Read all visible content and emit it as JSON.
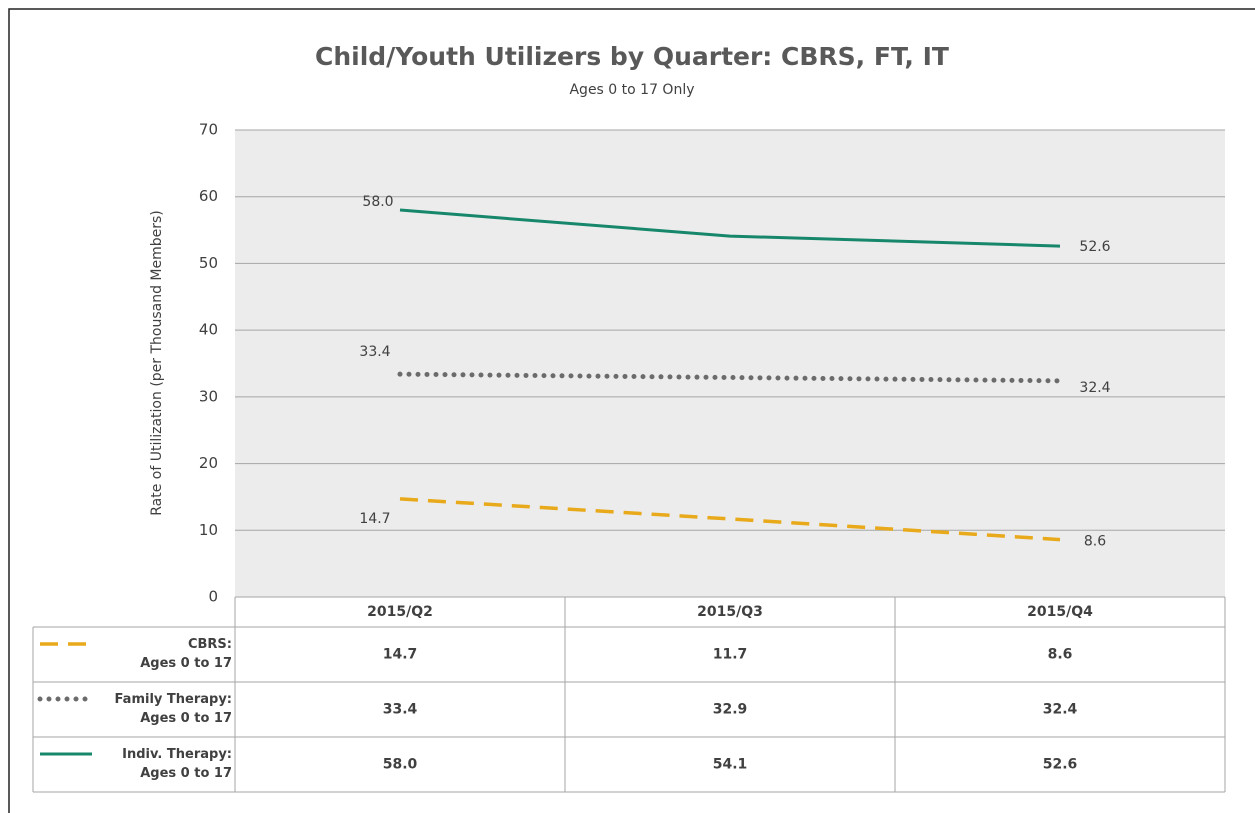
{
  "chart_data": {
    "type": "line",
    "title": "Child/Youth Utilizers by Quarter: CBRS, FT, IT",
    "subtitle": "Ages 0 to 17 Only",
    "y_label": "Rate of Utilization (per Thousand Members)",
    "categories": [
      "2015/Q2",
      "2015/Q3",
      "2015/Q4"
    ],
    "series": [
      {
        "name": "CBRS:\nAges 0 to 17",
        "color": "#e8a91a",
        "style": "dashed",
        "values": [
          14.7,
          11.7,
          8.6
        ],
        "value_labels": [
          "14.7",
          "11.7",
          "8.6"
        ]
      },
      {
        "name": "Family Therapy:\nAges 0 to 17",
        "color": "#6b6b6b",
        "style": "dotted",
        "values": [
          33.4,
          32.9,
          32.4
        ],
        "value_labels": [
          "33.4",
          "32.9",
          "32.4"
        ]
      },
      {
        "name": "Indiv. Therapy:\nAges 0 to 17",
        "color": "#17876b",
        "style": "solid",
        "values": [
          58.0,
          54.1,
          52.6
        ],
        "value_labels": [
          "58.0",
          "54.1",
          "52.6"
        ]
      }
    ],
    "ylim": [
      0,
      70
    ],
    "yticks": [
      0,
      10,
      20,
      30,
      40,
      50,
      60,
      70
    ],
    "grid": true
  }
}
